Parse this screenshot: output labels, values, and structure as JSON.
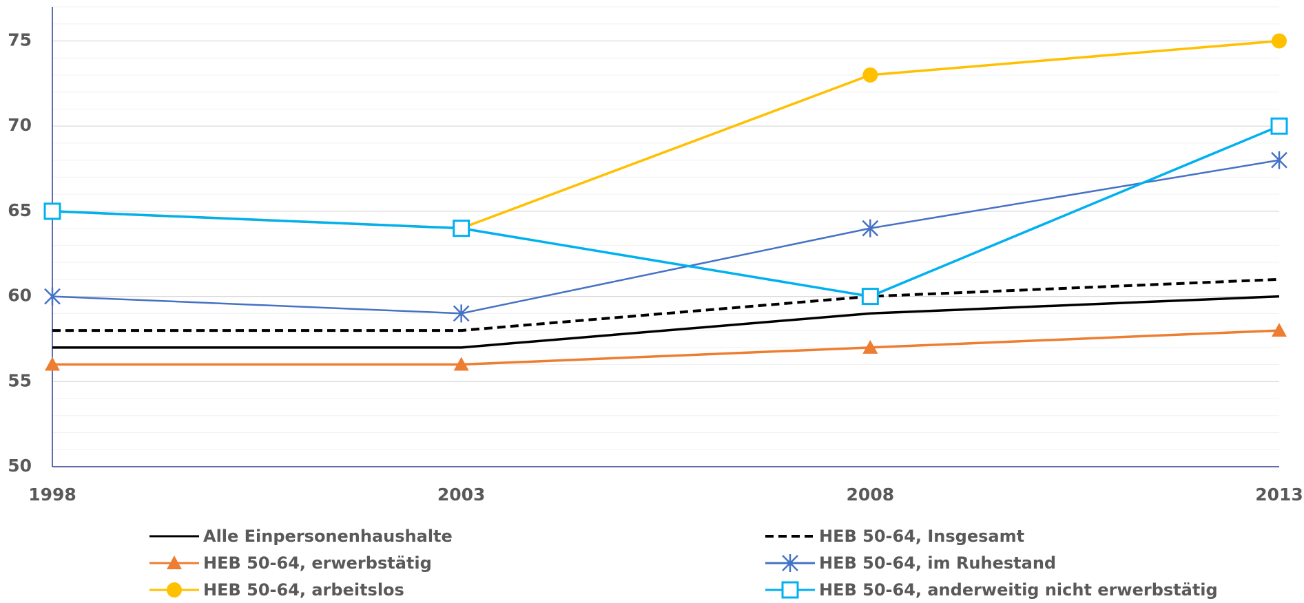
{
  "chart_data": {
    "type": "line",
    "x": [
      1998,
      2003,
      2008,
      2013
    ],
    "xlim": [
      1998,
      2013
    ],
    "xticks": [
      1998,
      2003,
      2008,
      2013
    ],
    "ylim": [
      50,
      77
    ],
    "yticks": [
      50,
      55,
      60,
      65,
      70,
      75
    ],
    "grid": true,
    "minor_grid": true,
    "legend": "bottom",
    "series": [
      {
        "name": "Alle Einpersonenhaushalte",
        "color": "#000000",
        "dash": false,
        "marker": "none",
        "values": [
          57,
          57,
          59,
          60
        ]
      },
      {
        "name": "HEB 50-64, Insgesamt",
        "color": "#000000",
        "dash": true,
        "marker": "none",
        "values": [
          58,
          58,
          60,
          61
        ]
      },
      {
        "name": "HEB 50-64, erwerbstätig",
        "color": "#ED7D31",
        "dash": false,
        "marker": "triangle",
        "values": [
          56,
          56,
          57,
          58
        ]
      },
      {
        "name": "HEB 50-64, im Ruhestand",
        "color": "#4472C4",
        "dash": false,
        "marker": "star",
        "values": [
          60,
          59,
          64,
          68
        ]
      },
      {
        "name": "HEB 50-64, arbeitslos",
        "color": "#FFC000",
        "dash": false,
        "marker": "circle",
        "values": [
          65,
          64,
          73,
          75
        ]
      },
      {
        "name": "HEB 50-64, anderweitig nicht erwerbstätig",
        "color": "#00B0F0",
        "dash": false,
        "marker": "square",
        "values": [
          65,
          64,
          60,
          70
        ]
      }
    ]
  }
}
